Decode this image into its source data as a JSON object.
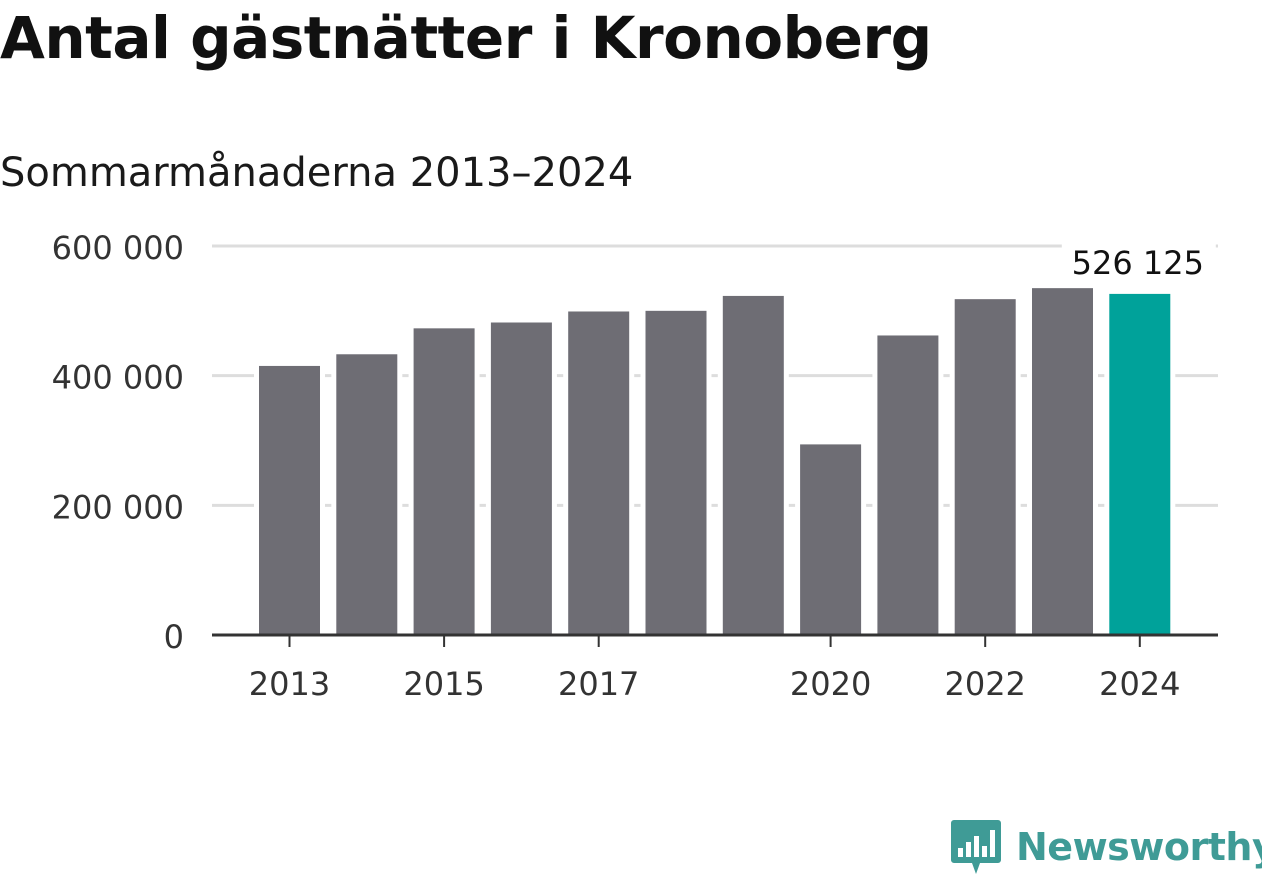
{
  "title": "Antal gästnätter i Kronoberg",
  "subtitle": "Sommarmånaderna 2013–2024",
  "brand": {
    "name": "Newsworthy",
    "icon": "newsworthy-logo-icon",
    "color": "#3f9b96"
  },
  "colors": {
    "bar": "#6e6d74",
    "highlight": "#00a29a",
    "grid": "#dddddd",
    "axis": "#333333"
  },
  "chart_data": {
    "type": "bar",
    "categories": [
      "2013",
      "2014",
      "2015",
      "2016",
      "2017",
      "2018",
      "2019",
      "2020",
      "2021",
      "2022",
      "2023",
      "2024"
    ],
    "values": [
      415000,
      433000,
      473000,
      482000,
      499000,
      500000,
      523000,
      294000,
      462000,
      518000,
      535000,
      526125
    ],
    "highlight_index": 11,
    "highlight_label": "526 125",
    "ylim": [
      0,
      600000
    ],
    "yticks": [
      0,
      200000,
      400000,
      600000
    ],
    "ytick_labels": [
      "0",
      "200 000",
      "400 000",
      "600 000"
    ],
    "xtick_labels": [
      "2013",
      "",
      "2015",
      "",
      "2017",
      "",
      "",
      "2020",
      "",
      "2022",
      "",
      "2024"
    ],
    "grid": true,
    "legend": "none"
  }
}
